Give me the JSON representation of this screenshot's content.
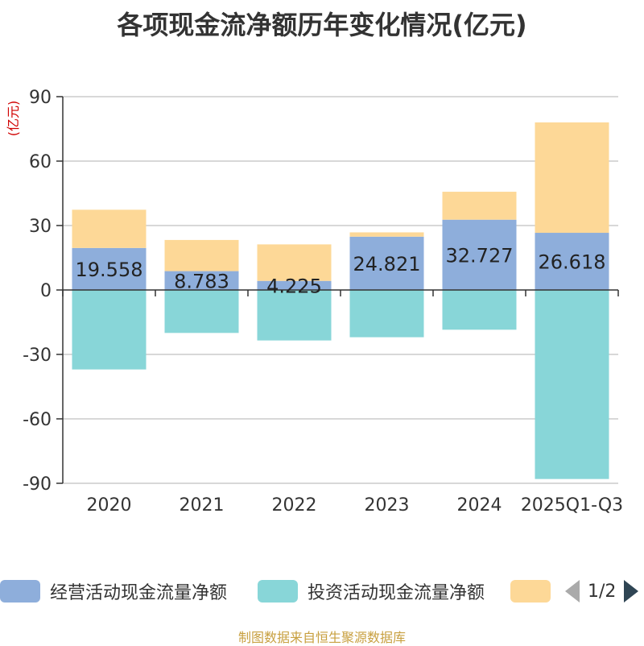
{
  "chart_data": {
    "type": "bar",
    "stacked": true,
    "title": "各项现金流净额历年变化情况(亿元)",
    "ylabel": "(亿元)",
    "xlabel": "",
    "ylim": [
      -90,
      90
    ],
    "yticks": [
      90,
      60,
      30,
      0,
      -30,
      -60,
      -90
    ],
    "categories": [
      "2020",
      "2021",
      "2022",
      "2023",
      "2024",
      "2025Q1-Q3"
    ],
    "series": [
      {
        "name": "经营活动现金流量净额",
        "color": "#8eaedb",
        "values": [
          19.558,
          8.783,
          4.225,
          24.821,
          32.727,
          26.618
        ],
        "labels": [
          "19.558",
          "8.783",
          "4.225",
          "24.821",
          "32.727",
          "26.618"
        ]
      },
      {
        "name": "投资活动现金流量净额",
        "color": "#88d6d8",
        "values": [
          -37.0,
          -20.0,
          -23.5,
          -22.0,
          -18.5,
          -88.0
        ]
      },
      {
        "name": "",
        "color": "#fdd897",
        "values": [
          17.8,
          14.5,
          17.0,
          2.0,
          13.0,
          51.4
        ]
      }
    ]
  },
  "legend": {
    "item1": "经营活动现金流量净额",
    "item2": "投资活动现金流量净额",
    "page": "1/2"
  },
  "source": "制图数据来自恒生聚源数据库"
}
